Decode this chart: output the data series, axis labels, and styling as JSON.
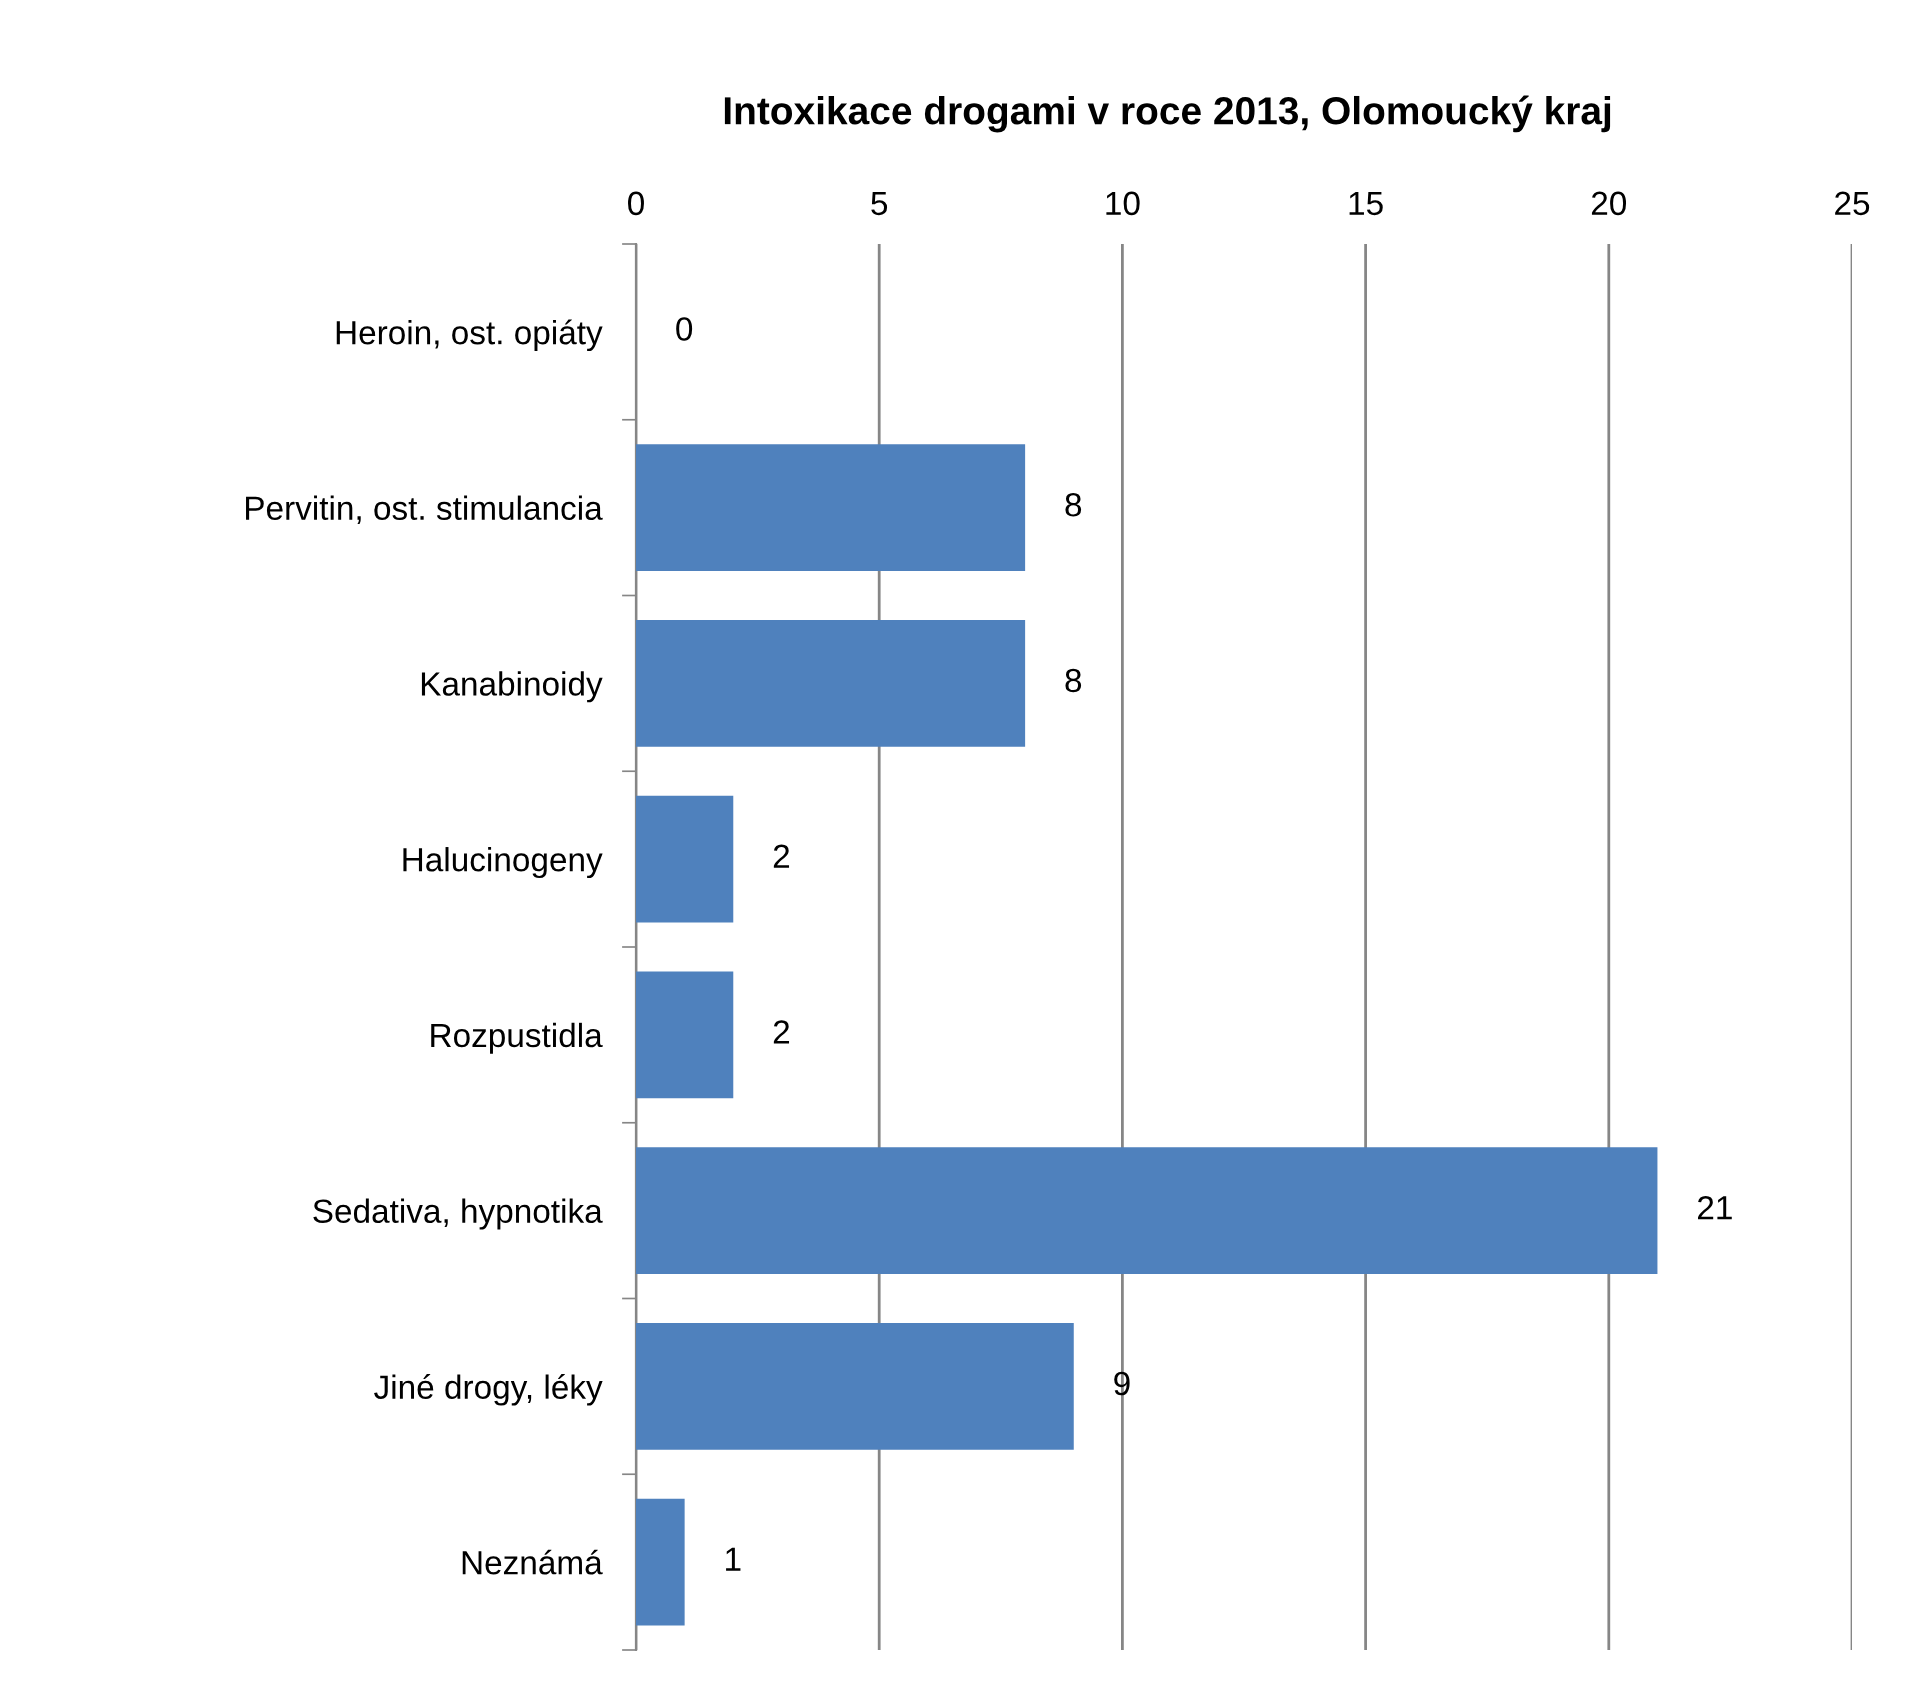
{
  "chart_data": {
    "type": "bar",
    "orientation": "horizontal",
    "title": "Intoxikace drogami v roce 2013, Olomoucký kraj",
    "categories": [
      "Heroin, ost. opiáty",
      "Pervitin, ost. stimulancia",
      "Kanabinoidy",
      "Halucinogeny",
      "Rozpustidla",
      "Sedativa, hypnotika",
      "Jiné drogy, léky",
      "Neznámá"
    ],
    "values": [
      0,
      8,
      8,
      2,
      2,
      21,
      9,
      1
    ],
    "color": "#4f81bd",
    "xlim": [
      0,
      25
    ],
    "xticks": [
      0,
      5,
      10,
      15,
      20,
      25
    ],
    "grid": "x",
    "data_labels": true
  }
}
